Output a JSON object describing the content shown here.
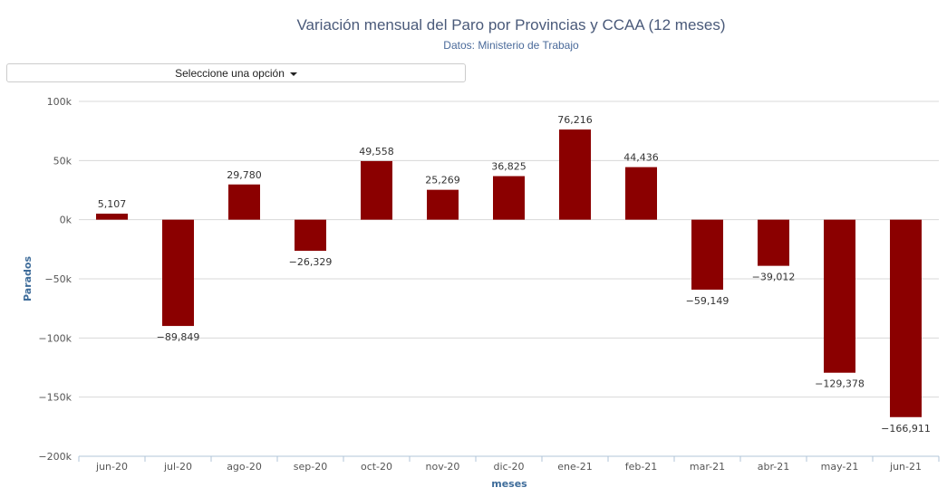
{
  "header": {
    "title": "Variación mensual del Paro por Provincias y CCAA (12 meses)",
    "subtitle": "Datos: Ministerio de Trabajo"
  },
  "selector": {
    "label": "Seleccione una opción"
  },
  "colors": {
    "bar": "#8b0000",
    "grid": "#d8d8d8",
    "axis": "#b0c4d8"
  },
  "chart_data": {
    "type": "bar",
    "categories": [
      "jun-20",
      "jul-20",
      "ago-20",
      "sep-20",
      "oct-20",
      "nov-20",
      "dic-20",
      "ene-21",
      "feb-21",
      "mar-21",
      "abr-21",
      "may-21",
      "jun-21"
    ],
    "values": [
      5107,
      -89849,
      29780,
      -26329,
      49558,
      25269,
      36825,
      76216,
      44436,
      -59149,
      -39012,
      -129378,
      -166911
    ],
    "value_labels": [
      "5,107",
      "−89,849",
      "29,780",
      "−26,329",
      "49,558",
      "25,269",
      "36,825",
      "76,216",
      "44,436",
      "−59,149",
      "−39,012",
      "−129,378",
      "−166,911"
    ],
    "xlabel": "meses",
    "ylabel": "Parados",
    "ylim": [
      -200000,
      100000
    ],
    "yticks": [
      100000,
      50000,
      0,
      -50000,
      -100000,
      -150000,
      -200000
    ],
    "ytick_labels": [
      "100k",
      "50k",
      "0k",
      "−50k",
      "−100k",
      "−150k",
      "−200k"
    ],
    "grid": true,
    "legend": "none"
  }
}
